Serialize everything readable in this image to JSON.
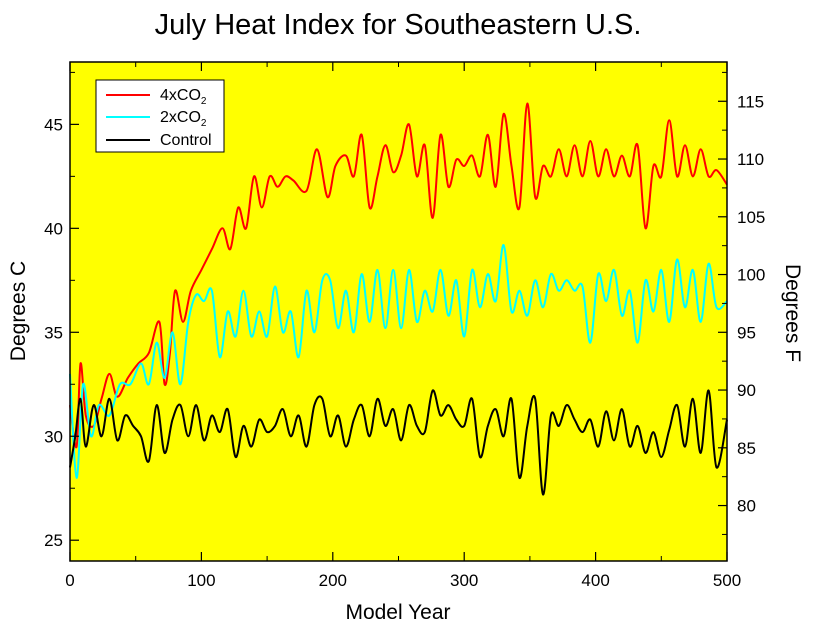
{
  "chart_data": {
    "type": "line",
    "title": "July Heat Index for Southeastern U.S.",
    "xlabel": "Model Year",
    "ylabel": "Degrees C",
    "y2label": "Degrees F",
    "xlim": [
      0,
      500
    ],
    "ylim": [
      24,
      48
    ],
    "y2lim": [
      75.2,
      118.4
    ],
    "x_ticks": [
      0,
      100,
      200,
      300,
      400,
      500
    ],
    "y_ticks": [
      25,
      30,
      35,
      40,
      45
    ],
    "y2_ticks": [
      80,
      85,
      90,
      95,
      100,
      105,
      110,
      115
    ],
    "background_color": "#ffff00",
    "legend_position": "top-left",
    "series": [
      {
        "name": "4xCO2",
        "legend_base": "4xCO",
        "legend_sub": "2",
        "color": "#ff0000",
        "x": [
          0,
          5,
          8,
          12,
          18,
          24,
          30,
          36,
          44,
          52,
          60,
          68,
          72,
          76,
          80,
          86,
          92,
          100,
          108,
          116,
          122,
          128,
          134,
          140,
          146,
          152,
          158,
          164,
          170,
          180,
          188,
          196,
          202,
          210,
          216,
          222,
          228,
          234,
          240,
          246,
          252,
          258,
          264,
          270,
          276,
          282,
          288,
          294,
          300,
          306,
          312,
          318,
          324,
          330,
          336,
          342,
          348,
          354,
          360,
          366,
          372,
          378,
          384,
          390,
          396,
          402,
          408,
          414,
          420,
          426,
          432,
          438,
          444,
          450,
          456,
          462,
          468,
          474,
          480,
          486,
          492,
          500
        ],
        "y": [
          31.5,
          29.5,
          33.5,
          31,
          30.5,
          31.8,
          33,
          31.9,
          32.8,
          33.5,
          34,
          35.5,
          32.5,
          34,
          37,
          35.5,
          37,
          38,
          39,
          40,
          39,
          41,
          40,
          42.5,
          41,
          42.5,
          42,
          42.5,
          42.3,
          41.8,
          43.8,
          41.5,
          43,
          43.5,
          42.5,
          44.5,
          41,
          42.5,
          44,
          42.7,
          43.5,
          45,
          42.5,
          44,
          40.5,
          44.5,
          42,
          43.3,
          43,
          43.5,
          42.5,
          44.5,
          42,
          45.5,
          43,
          41,
          46,
          41.5,
          43,
          42.5,
          43.8,
          42.5,
          44,
          42.5,
          44.2,
          42.5,
          43.8,
          42.5,
          43.5,
          42.5,
          44,
          40,
          43,
          42.5,
          45.2,
          42.5,
          44,
          42.5,
          43.8,
          42.5,
          42.8,
          42.1
        ]
      },
      {
        "name": "2xCO2",
        "legend_base": "2xCO",
        "legend_sub": "2",
        "color": "#00ffff",
        "x": [
          0,
          5,
          10,
          16,
          22,
          30,
          38,
          46,
          54,
          60,
          66,
          72,
          78,
          84,
          90,
          96,
          102,
          108,
          114,
          120,
          126,
          132,
          138,
          144,
          150,
          156,
          162,
          168,
          174,
          180,
          186,
          192,
          198,
          204,
          210,
          216,
          222,
          228,
          234,
          240,
          246,
          252,
          258,
          264,
          270,
          276,
          282,
          288,
          294,
          300,
          306,
          312,
          318,
          324,
          330,
          336,
          342,
          348,
          354,
          360,
          366,
          372,
          378,
          384,
          390,
          396,
          402,
          408,
          414,
          420,
          426,
          432,
          438,
          444,
          450,
          456,
          462,
          468,
          474,
          480,
          486,
          492,
          500
        ],
        "y": [
          33,
          28,
          32.5,
          30,
          31.5,
          31,
          32.5,
          32.5,
          33.5,
          32.5,
          34.5,
          32.8,
          35,
          32.5,
          35.5,
          36.8,
          36.5,
          37,
          33.8,
          36,
          34.8,
          37,
          34.8,
          36,
          34.8,
          37.2,
          35,
          36,
          33.8,
          37,
          35,
          37.5,
          37.5,
          35.2,
          37,
          35,
          37.8,
          35.5,
          38,
          35.2,
          38,
          35.2,
          38,
          35.5,
          37,
          36,
          38,
          35.8,
          37.5,
          34.8,
          38,
          36.2,
          37.8,
          36.5,
          39.2,
          36,
          37,
          35.8,
          37.5,
          36.2,
          37.8,
          37,
          37.5,
          37,
          37.2,
          34.5,
          37.8,
          36.5,
          38,
          35.8,
          37,
          34.5,
          37.5,
          36,
          38,
          35.5,
          38.5,
          36.2,
          38,
          35.5,
          38.3,
          36.2,
          36.5
        ]
      },
      {
        "name": "Control",
        "color": "#000000",
        "x": [
          0,
          4,
          8,
          12,
          18,
          24,
          30,
          36,
          42,
          48,
          54,
          60,
          66,
          72,
          78,
          84,
          90,
          96,
          102,
          108,
          114,
          120,
          126,
          132,
          138,
          144,
          150,
          156,
          162,
          168,
          174,
          180,
          186,
          192,
          198,
          204,
          210,
          216,
          222,
          228,
          234,
          240,
          246,
          252,
          258,
          264,
          270,
          276,
          282,
          288,
          294,
          300,
          306,
          312,
          318,
          324,
          330,
          336,
          342,
          348,
          354,
          360,
          366,
          372,
          378,
          384,
          390,
          396,
          402,
          408,
          414,
          420,
          426,
          432,
          438,
          444,
          450,
          456,
          462,
          468,
          474,
          480,
          486,
          492,
          500
        ],
        "y": [
          28.5,
          30,
          31.8,
          29.5,
          31.5,
          30,
          31.8,
          29.8,
          31,
          30.5,
          30,
          28.8,
          31.5,
          29.2,
          30.8,
          31.5,
          30,
          31.5,
          29.8,
          31,
          30.2,
          31.3,
          29,
          30.5,
          29.5,
          30.8,
          30.2,
          30.5,
          31.3,
          30,
          31,
          29.5,
          31.5,
          31.8,
          30,
          31,
          29.5,
          30.8,
          31.5,
          30,
          31.8,
          30.5,
          31.3,
          29.8,
          31.5,
          30.5,
          30.2,
          32.2,
          31,
          31.5,
          30.8,
          30.5,
          31.8,
          29,
          30.5,
          31.3,
          30,
          31.8,
          28,
          30.5,
          31.8,
          27.2,
          31,
          30.5,
          31.5,
          30.8,
          30.2,
          30.8,
          29.5,
          31.2,
          29.8,
          31.3,
          29.5,
          30.5,
          29.2,
          30.2,
          29,
          30.3,
          31.5,
          29.5,
          31.8,
          29.2,
          32.2,
          28.5,
          30.8
        ]
      }
    ]
  }
}
